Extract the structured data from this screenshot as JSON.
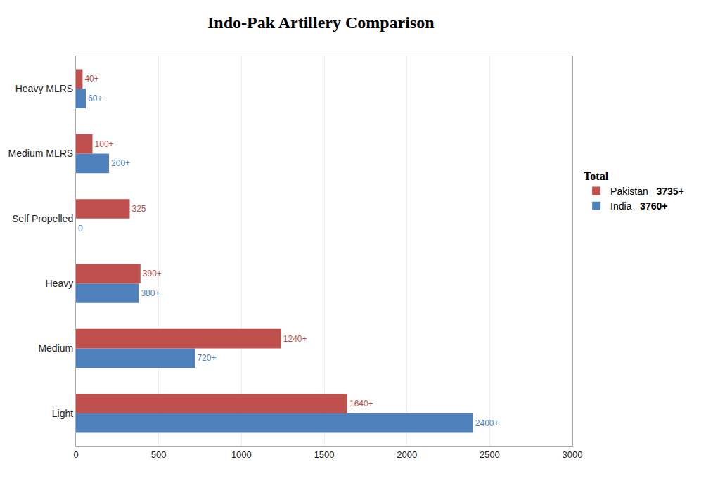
{
  "chart_data": {
    "type": "bar",
    "orientation": "horizontal",
    "title": "Indo-Pak Artillery Comparison",
    "categories": [
      "Light",
      "Medium",
      "Heavy",
      "Self Propelled",
      "Medium MLRS",
      "Heavy MLRS"
    ],
    "series": [
      {
        "name": "Pakistan",
        "color": "#c0504d",
        "values": [
          1640,
          1240,
          390,
          325,
          100,
          40
        ],
        "value_labels": [
          "1640+",
          "1240+",
          "390+",
          "325",
          "100+",
          "40+"
        ],
        "total": "3735+"
      },
      {
        "name": "India",
        "color": "#4f81bd",
        "values": [
          2400,
          720,
          380,
          0,
          200,
          60
        ],
        "value_labels": [
          "2400+",
          "720+",
          "380+",
          "0",
          "200+",
          "60+"
        ],
        "total": "3760+"
      }
    ],
    "xlim": [
      0,
      3000
    ],
    "xticks": [
      0,
      500,
      1000,
      1500,
      2000,
      2500,
      3000
    ],
    "grid": true,
    "data_labels": true,
    "legend": "right",
    "legend_title": "Total"
  }
}
